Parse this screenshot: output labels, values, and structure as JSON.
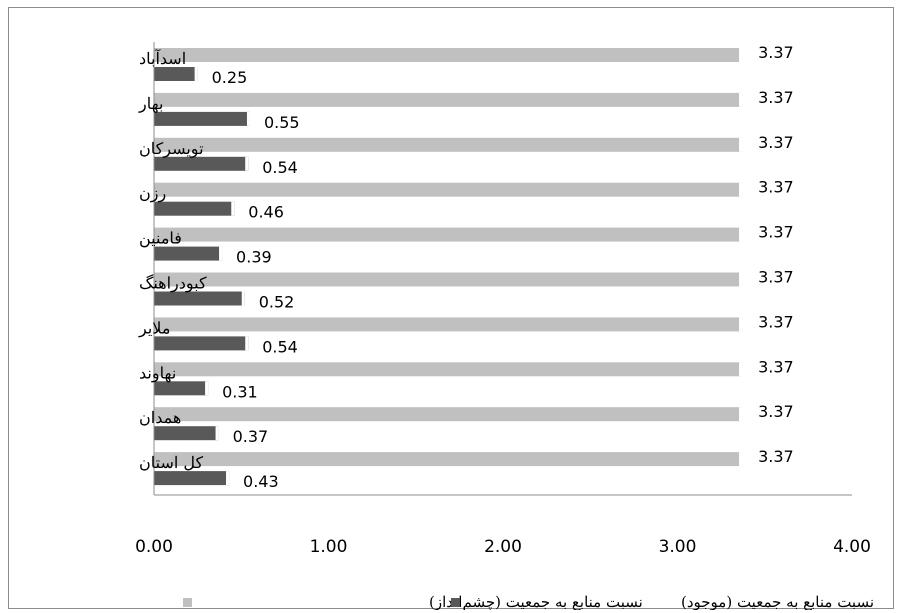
{
  "chart_data": {
    "type": "bar",
    "orientation": "horizontal",
    "categories": [
      "اسدآباد",
      "بهار",
      "تویسرکان",
      "رزن",
      "فامنین",
      "کبودراهنگ",
      "ملایر",
      "نهاوند",
      "همدان",
      "کل استان"
    ],
    "series": [
      {
        "name": "نسبت منابع به جمعیت (چشم‌انداز)",
        "values": [
          3.37,
          3.37,
          3.37,
          3.37,
          3.37,
          3.37,
          3.37,
          3.37,
          3.37,
          3.37
        ],
        "labels": [
          "3.37",
          "3.37",
          "3.37",
          "3.37",
          "3.37",
          "3.37",
          "3.37",
          "3.37",
          "3.37",
          "3.37"
        ],
        "color": "#c0c0c0"
      },
      {
        "name": "نسبت منابع به جمعیت (موجود)",
        "values": [
          0.25,
          0.55,
          0.54,
          0.46,
          0.39,
          0.52,
          0.54,
          0.31,
          0.37,
          0.43
        ],
        "labels": [
          "0.25",
          "0.55",
          "0.54",
          "0.46",
          "0.39",
          "0.52",
          "0.54",
          "0.31",
          "0.37",
          "0.43"
        ],
        "color": "#595959"
      }
    ],
    "xlim": [
      0,
      4
    ],
    "xticks": [
      "0.00",
      "1.00",
      "2.00",
      "3.00",
      "4.00"
    ],
    "grid": false,
    "legend_position": "bottom"
  }
}
